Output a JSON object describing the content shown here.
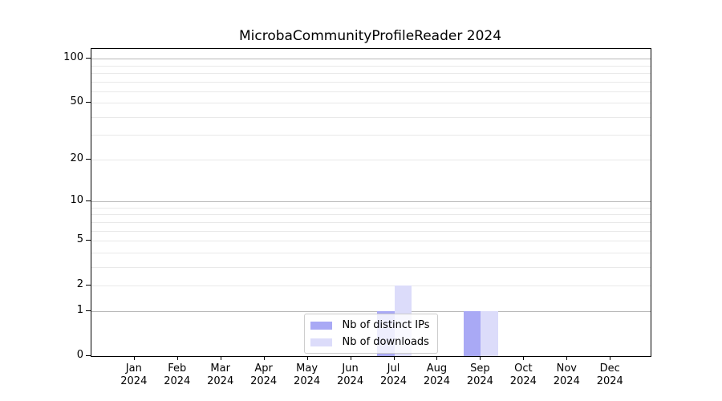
{
  "chart_data": {
    "type": "bar",
    "title": "MicrobaCommunityProfileReader 2024",
    "categories": [
      "Jan 2024",
      "Feb 2024",
      "Mar 2024",
      "Apr 2024",
      "May 2024",
      "Jun 2024",
      "Jul 2024",
      "Aug 2024",
      "Sep 2024",
      "Oct 2024",
      "Nov 2024",
      "Dec 2024"
    ],
    "series": [
      {
        "name": "Nb of distinct IPs",
        "color": "#a9a9f5",
        "values": [
          0,
          0,
          0,
          0,
          0,
          0,
          1,
          0,
          1,
          0,
          0,
          0
        ]
      },
      {
        "name": "Nb of downloads",
        "color": "#dcdcfa",
        "values": [
          0,
          0,
          0,
          0,
          0,
          0,
          2,
          0,
          1,
          0,
          0,
          0
        ]
      }
    ],
    "xlabel": "",
    "ylabel": "",
    "yscale": "log1p",
    "ylim": [
      0,
      116
    ],
    "y_major_ticks": [
      0,
      1,
      2,
      5,
      10,
      20,
      50,
      100
    ],
    "y_grid_major": [
      1,
      10,
      100
    ],
    "y_grid_minor": [
      2,
      3,
      4,
      5,
      6,
      7,
      8,
      9,
      20,
      30,
      40,
      50,
      60,
      70,
      80,
      90
    ],
    "grid": true,
    "legend_position": "lower center"
  },
  "legend": {
    "items": [
      {
        "label": "Nb of distinct IPs",
        "color": "#a9a9f5"
      },
      {
        "label": "Nb of downloads",
        "color": "#dcdcfa"
      }
    ]
  },
  "colors": {
    "background": "#ffffff",
    "spine": "#000000",
    "grid_major": "#b8b8b8",
    "grid_minor": "#e9e9e9",
    "text": "#000000",
    "legend_border": "#cccccc"
  }
}
